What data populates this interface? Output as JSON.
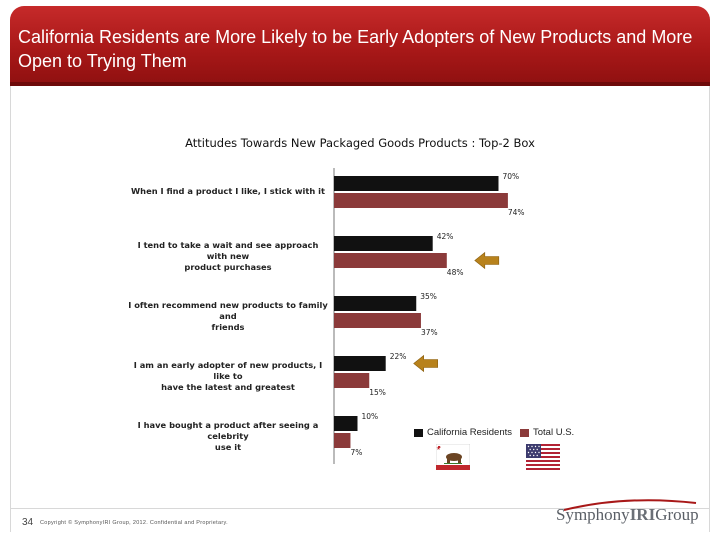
{
  "slide": {
    "title": "California Residents are More Likely to be Early Adopters of New Products and More Open to Trying Them",
    "page_number": "34",
    "copyright": "Copyright © SymphonyIRI Group, 2012. Confidential and Proprietary.",
    "brand_main": "Symphony",
    "brand_bold": "IRI",
    "brand_end": "Group"
  },
  "colors": {
    "header": "#a81818",
    "california": "#111111",
    "total_us": "#8b3a3a"
  },
  "icons": [
    "california-flag-icon",
    "us-flag-icon",
    "arrow-left-icon"
  ],
  "chart_data": {
    "type": "bar",
    "orientation": "horizontal",
    "title": "Attitudes Towards New Packaged Goods Products : Top-2 Box",
    "categories": [
      [
        "When I find a product I like, I stick with it"
      ],
      [
        "I tend to take a wait and see approach with new",
        "product purchases"
      ],
      [
        "I often recommend new products to family and",
        "friends"
      ],
      [
        "I am an early adopter of new products, I like to",
        "have the latest and greatest"
      ],
      [
        "I have bought a product after seeing a celebrity",
        "use it"
      ]
    ],
    "series": [
      {
        "name": "California Residents",
        "values": [
          70,
          42,
          35,
          22,
          10
        ]
      },
      {
        "name": "Total U.S.",
        "values": [
          74,
          48,
          37,
          15,
          7
        ]
      }
    ],
    "value_labels": [
      [
        "70%",
        "42%",
        "35%",
        "22%",
        "10%"
      ],
      [
        "74%",
        "48%",
        "37%",
        "15%",
        "7%"
      ]
    ],
    "xlim": [
      0,
      100
    ],
    "legend": "bottom-right",
    "grid": false,
    "highlight_arrows": [
      {
        "category_index": 1,
        "series_index": 1
      },
      {
        "category_index": 3,
        "series_index": 0
      }
    ]
  }
}
